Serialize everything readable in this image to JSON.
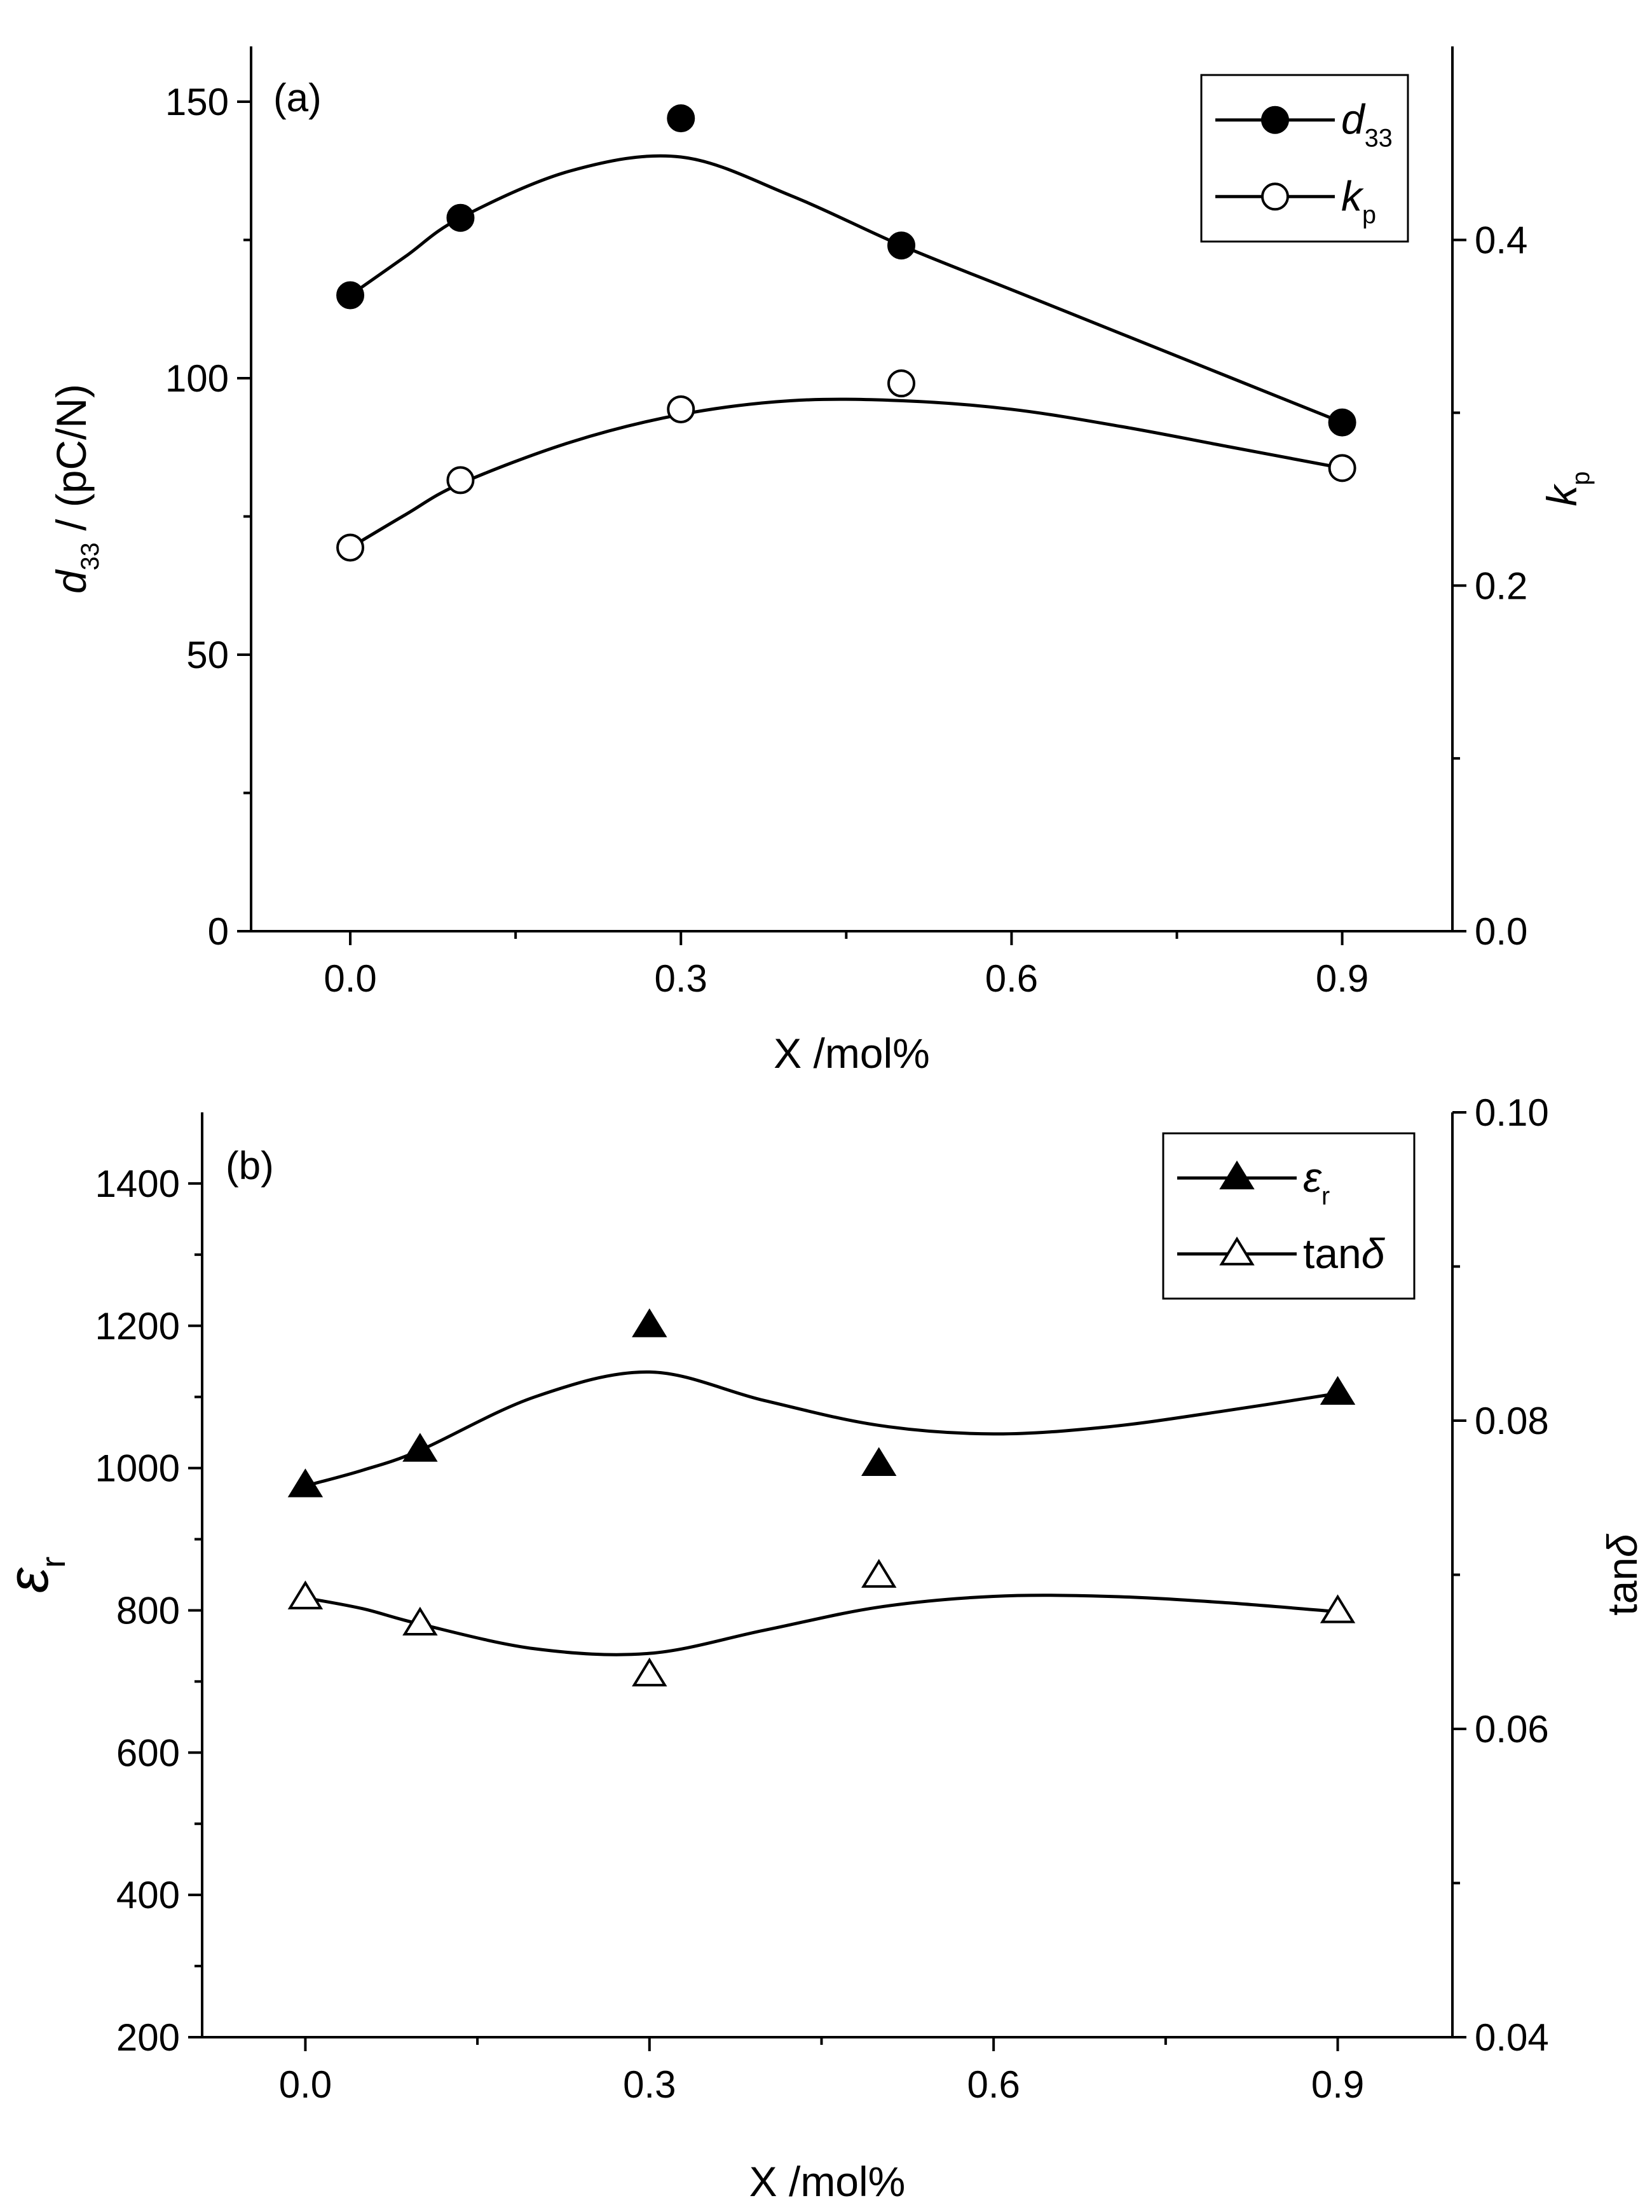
{
  "chart_data": [
    {
      "panel_label": "(a)",
      "type": "line",
      "x": [
        0.0,
        0.1,
        0.3,
        0.5,
        0.9
      ],
      "xlabel": "X /mol%",
      "xlim": [
        -0.09,
        1.0
      ],
      "xticks": [
        "0.0",
        "0.3",
        "0.6",
        "0.9"
      ],
      "xtick_values": [
        0.0,
        0.3,
        0.6,
        0.9
      ],
      "ylabel_left": {
        "main": "d",
        "sub": "33",
        "rest": " / (pC/N)"
      },
      "ylim_left": [
        0,
        160
      ],
      "yticks_left": [
        "0",
        "50",
        "100",
        "150"
      ],
      "ytick_values_left": [
        0,
        50,
        100,
        150
      ],
      "ylabel_right": {
        "main": "k",
        "sub": "p"
      },
      "ylim_right": [
        0.0,
        0.512
      ],
      "yticks_right": [
        "0.0",
        "0.2",
        "0.4"
      ],
      "ytick_values_right": [
        0.0,
        0.2,
        0.4
      ],
      "legend_position": "top-right",
      "series": [
        {
          "name": {
            "main": "d",
            "sub": "33"
          },
          "axis": "left",
          "marker": "filled-circle",
          "values": [
            115,
            129,
            147,
            124,
            92
          ],
          "fit_curve": [
            [
              0.0,
              115
            ],
            [
              0.05,
              122
            ],
            [
              0.1,
              129
            ],
            [
              0.2,
              137.5
            ],
            [
              0.3,
              140
            ],
            [
              0.4,
              133
            ],
            [
              0.5,
              124
            ],
            [
              0.6,
              116
            ],
            [
              0.7,
              108
            ],
            [
              0.8,
              100
            ],
            [
              0.9,
              92
            ]
          ]
        },
        {
          "name": {
            "main": "k",
            "sub": "p"
          },
          "axis": "right",
          "marker": "open-circle",
          "values": [
            0.222,
            0.261,
            0.302,
            0.317,
            0.268
          ],
          "fit_curve": [
            [
              0.0,
              0.222
            ],
            [
              0.05,
              0.241
            ],
            [
              0.1,
              0.259
            ],
            [
              0.2,
              0.283
            ],
            [
              0.3,
              0.299
            ],
            [
              0.4,
              0.307
            ],
            [
              0.5,
              0.307
            ],
            [
              0.6,
              0.302
            ],
            [
              0.7,
              0.292
            ],
            [
              0.8,
              0.28
            ],
            [
              0.9,
              0.268
            ]
          ]
        }
      ]
    },
    {
      "panel_label": "(b)",
      "type": "line",
      "x": [
        0.0,
        0.1,
        0.3,
        0.5,
        0.9
      ],
      "xlabel": "X /mol%",
      "xlim": [
        -0.09,
        1.0
      ],
      "xticks": [
        "0.0",
        "0.3",
        "0.6",
        "0.9"
      ],
      "xtick_values": [
        0.0,
        0.3,
        0.6,
        0.9
      ],
      "ylabel_left": {
        "main": "ε",
        "sub": "r",
        "rest": ""
      },
      "ylim_left": [
        200,
        1500
      ],
      "yticks_left": [
        "200",
        "400",
        "600",
        "800",
        "1000",
        "1200",
        "1400"
      ],
      "ytick_values_left": [
        200,
        400,
        600,
        800,
        1000,
        1200,
        1400
      ],
      "ylabel_right": {
        "main": "tan",
        "sub": "",
        "rest": "δ"
      },
      "ylim_right": [
        0.04,
        0.1
      ],
      "yticks_right": [
        "0.04",
        "0.06",
        "0.08",
        "0.10"
      ],
      "ytick_values_right": [
        0.04,
        0.06,
        0.08,
        0.1
      ],
      "legend_position": "top-right",
      "series": [
        {
          "name": {
            "main": "ε",
            "sub": "r"
          },
          "axis": "left",
          "marker": "filled-triangle",
          "values": [
            975,
            1025,
            1200,
            1005,
            1105
          ],
          "fit_curve": [
            [
              0.0,
              975
            ],
            [
              0.05,
              997
            ],
            [
              0.1,
              1025
            ],
            [
              0.2,
              1100
            ],
            [
              0.3,
              1135
            ],
            [
              0.4,
              1095
            ],
            [
              0.5,
              1060
            ],
            [
              0.6,
              1048
            ],
            [
              0.7,
              1058
            ],
            [
              0.8,
              1080
            ],
            [
              0.9,
              1105
            ]
          ]
        },
        {
          "name": {
            "main": "tan",
            "sub": "",
            "rest": "δ"
          },
          "axis": "right",
          "marker": "open-triangle",
          "values": [
            0.0685,
            0.0668,
            0.0635,
            0.0699,
            0.0676
          ],
          "fit_curve": [
            [
              0.0,
              0.0685
            ],
            [
              0.05,
              0.0678
            ],
            [
              0.1,
              0.0668
            ],
            [
              0.2,
              0.0652
            ],
            [
              0.3,
              0.0649
            ],
            [
              0.4,
              0.0664
            ],
            [
              0.5,
              0.0679
            ],
            [
              0.6,
              0.0686
            ],
            [
              0.7,
              0.0686
            ],
            [
              0.8,
              0.0682
            ],
            [
              0.9,
              0.0676
            ]
          ]
        }
      ]
    }
  ]
}
